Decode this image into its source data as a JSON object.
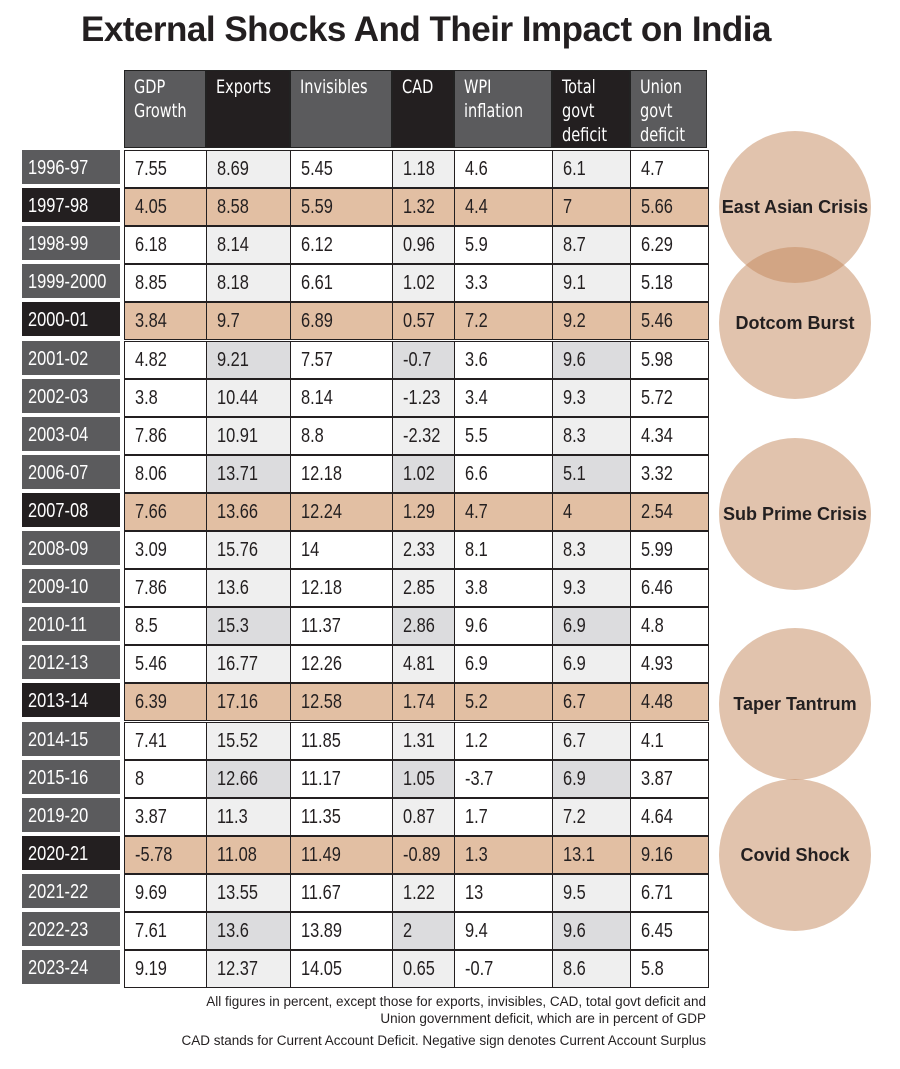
{
  "title": "External Shocks And Their Impact on India",
  "chart_data": {
    "type": "table",
    "title": "External Shocks And Their Impact on India",
    "columns": [
      "GDP\nGrowth",
      "Exports",
      "Invisibles",
      "CAD",
      "WPI\ninflation",
      "Total\ngovt\ndeficit",
      "Union\ngovt\ndeficit"
    ],
    "rows": [
      {
        "year": "1996-97",
        "values": [
          "7.55",
          "8.69",
          "5.45",
          "1.18",
          "4.6",
          "6.1",
          "4.7"
        ],
        "highlight": false
      },
      {
        "year": "1997-98",
        "values": [
          "4.05",
          "8.58",
          "5.59",
          "1.32",
          "4.4",
          "7",
          "5.66"
        ],
        "highlight": true
      },
      {
        "year": "1998-99",
        "values": [
          "6.18",
          "8.14",
          "6.12",
          "0.96",
          "5.9",
          "8.7",
          "6.29"
        ],
        "highlight": false
      },
      {
        "year": "1999-2000",
        "values": [
          "8.85",
          "8.18",
          "6.61",
          "1.02",
          "3.3",
          "9.1",
          "5.18"
        ],
        "highlight": false
      },
      {
        "year": "2000-01",
        "values": [
          "3.84",
          "9.7",
          "6.89",
          "0.57",
          "7.2",
          "9.2",
          "5.46"
        ],
        "highlight": true
      },
      {
        "year": "2001-02",
        "values": [
          "4.82",
          "9.21",
          "7.57",
          "-0.7",
          "3.6",
          "9.6",
          "5.98"
        ],
        "highlight": false
      },
      {
        "year": "2002-03",
        "values": [
          "3.8",
          "10.44",
          "8.14",
          "-1.23",
          "3.4",
          "9.3",
          "5.72"
        ],
        "highlight": false
      },
      {
        "year": "2003-04",
        "values": [
          "7.86",
          "10.91",
          "8.8",
          "-2.32",
          "5.5",
          "8.3",
          "4.34"
        ],
        "highlight": false
      },
      {
        "year": "2006-07",
        "values": [
          "8.06",
          "13.71",
          "12.18",
          "1.02",
          "6.6",
          "5.1",
          "3.32"
        ],
        "highlight": false
      },
      {
        "year": "2007-08",
        "values": [
          "7.66",
          "13.66",
          "12.24",
          "1.29",
          "4.7",
          "4",
          "2.54"
        ],
        "highlight": true
      },
      {
        "year": "2008-09",
        "values": [
          "3.09",
          "15.76",
          "14",
          "2.33",
          "8.1",
          "8.3",
          "5.99"
        ],
        "highlight": false
      },
      {
        "year": "2009-10",
        "values": [
          "7.86",
          "13.6",
          "12.18",
          "2.85",
          "3.8",
          "9.3",
          "6.46"
        ],
        "highlight": false
      },
      {
        "year": "2010-11",
        "values": [
          "8.5",
          "15.3",
          "11.37",
          "2.86",
          "9.6",
          "6.9",
          "4.8"
        ],
        "highlight": false
      },
      {
        "year": "2012-13",
        "values": [
          "5.46",
          "16.77",
          "12.26",
          "4.81",
          "6.9",
          "6.9",
          "4.93"
        ],
        "highlight": false
      },
      {
        "year": "2013-14",
        "values": [
          "6.39",
          "17.16",
          "12.58",
          "1.74",
          "5.2",
          "6.7",
          "4.48"
        ],
        "highlight": true
      },
      {
        "year": "2014-15",
        "values": [
          "7.41",
          "15.52",
          "11.85",
          "1.31",
          "1.2",
          "6.7",
          "4.1"
        ],
        "highlight": false
      },
      {
        "year": "2015-16",
        "values": [
          "8",
          "12.66",
          "11.17",
          "1.05",
          "-3.7",
          "6.9",
          "3.87"
        ],
        "highlight": false
      },
      {
        "year": "2019-20",
        "values": [
          "3.87",
          "11.3",
          "11.35",
          "0.87",
          "1.7",
          "7.2",
          "4.64"
        ],
        "highlight": false
      },
      {
        "year": "2020-21",
        "values": [
          "-5.78",
          "11.08",
          "11.49",
          "-0.89",
          "1.3",
          "13.1",
          "9.16"
        ],
        "highlight": true
      },
      {
        "year": "2021-22",
        "values": [
          "9.69",
          "13.55",
          "11.67",
          "1.22",
          "13",
          "9.5",
          "6.71"
        ],
        "highlight": false
      },
      {
        "year": "2022-23",
        "values": [
          "7.61",
          "13.6",
          "13.89",
          "2",
          "9.4",
          "9.6",
          "6.45"
        ],
        "highlight": false
      },
      {
        "year": "2023-24",
        "values": [
          "9.19",
          "12.37",
          "14.05",
          "0.65",
          "-0.7",
          "8.6",
          "5.8"
        ],
        "highlight": false
      }
    ],
    "annotations": [
      {
        "label": "East Asian Crisis",
        "year": "1997-98"
      },
      {
        "label": "Dotcom Burst",
        "year": "2000-01"
      },
      {
        "label": "Sub Prime Crisis",
        "year": "2007-08"
      },
      {
        "label": "Taper Tantrum",
        "year": "2013-14"
      },
      {
        "label": "Covid Shock",
        "year": "2020-21"
      }
    ]
  },
  "notes": [
    "All figures in percent, except those for exports, invisibles, CAD, total govt deficit and",
    "Union government deficit, which are in percent of GDP",
    "CAD stands for Current Account Deficit. Negative sign denotes Current Account Surplus"
  ],
  "colors": {
    "highlight": "#e2bfa3",
    "header_gray": "#5b5b5d",
    "header_black": "#231f20",
    "circle": "#e3c4ad"
  }
}
